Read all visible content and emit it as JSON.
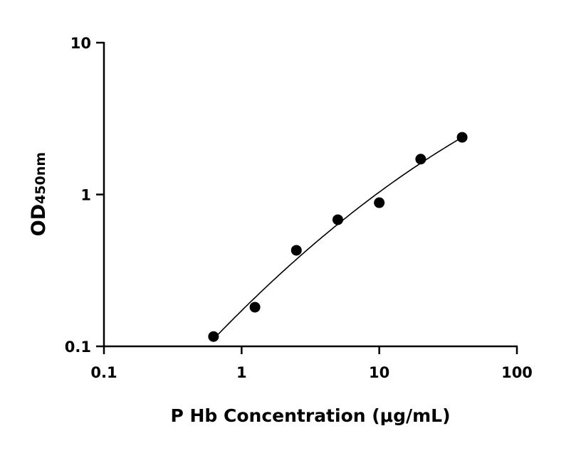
{
  "chart_data": {
    "type": "scatter",
    "title": "",
    "xlabel": "P Hb Concentration (μg/mL)",
    "ylabel_main": "OD",
    "ylabel_sub": "450nm",
    "xscale": "log",
    "yscale": "log",
    "xlim": [
      0.1,
      100
    ],
    "ylim": [
      0.1,
      10
    ],
    "xticks": [
      "0.1",
      "1",
      "10",
      "100"
    ],
    "yticks": [
      "0.1",
      "1",
      "10"
    ],
    "grid": false,
    "fit_curve": true,
    "color": "#000000",
    "points": [
      {
        "x": 0.625,
        "y": 0.116
      },
      {
        "x": 1.25,
        "y": 0.181
      },
      {
        "x": 2.5,
        "y": 0.429
      },
      {
        "x": 5,
        "y": 0.682
      },
      {
        "x": 10,
        "y": 0.883
      },
      {
        "x": 20,
        "y": 1.71
      },
      {
        "x": 40,
        "y": 2.38
      }
    ]
  }
}
